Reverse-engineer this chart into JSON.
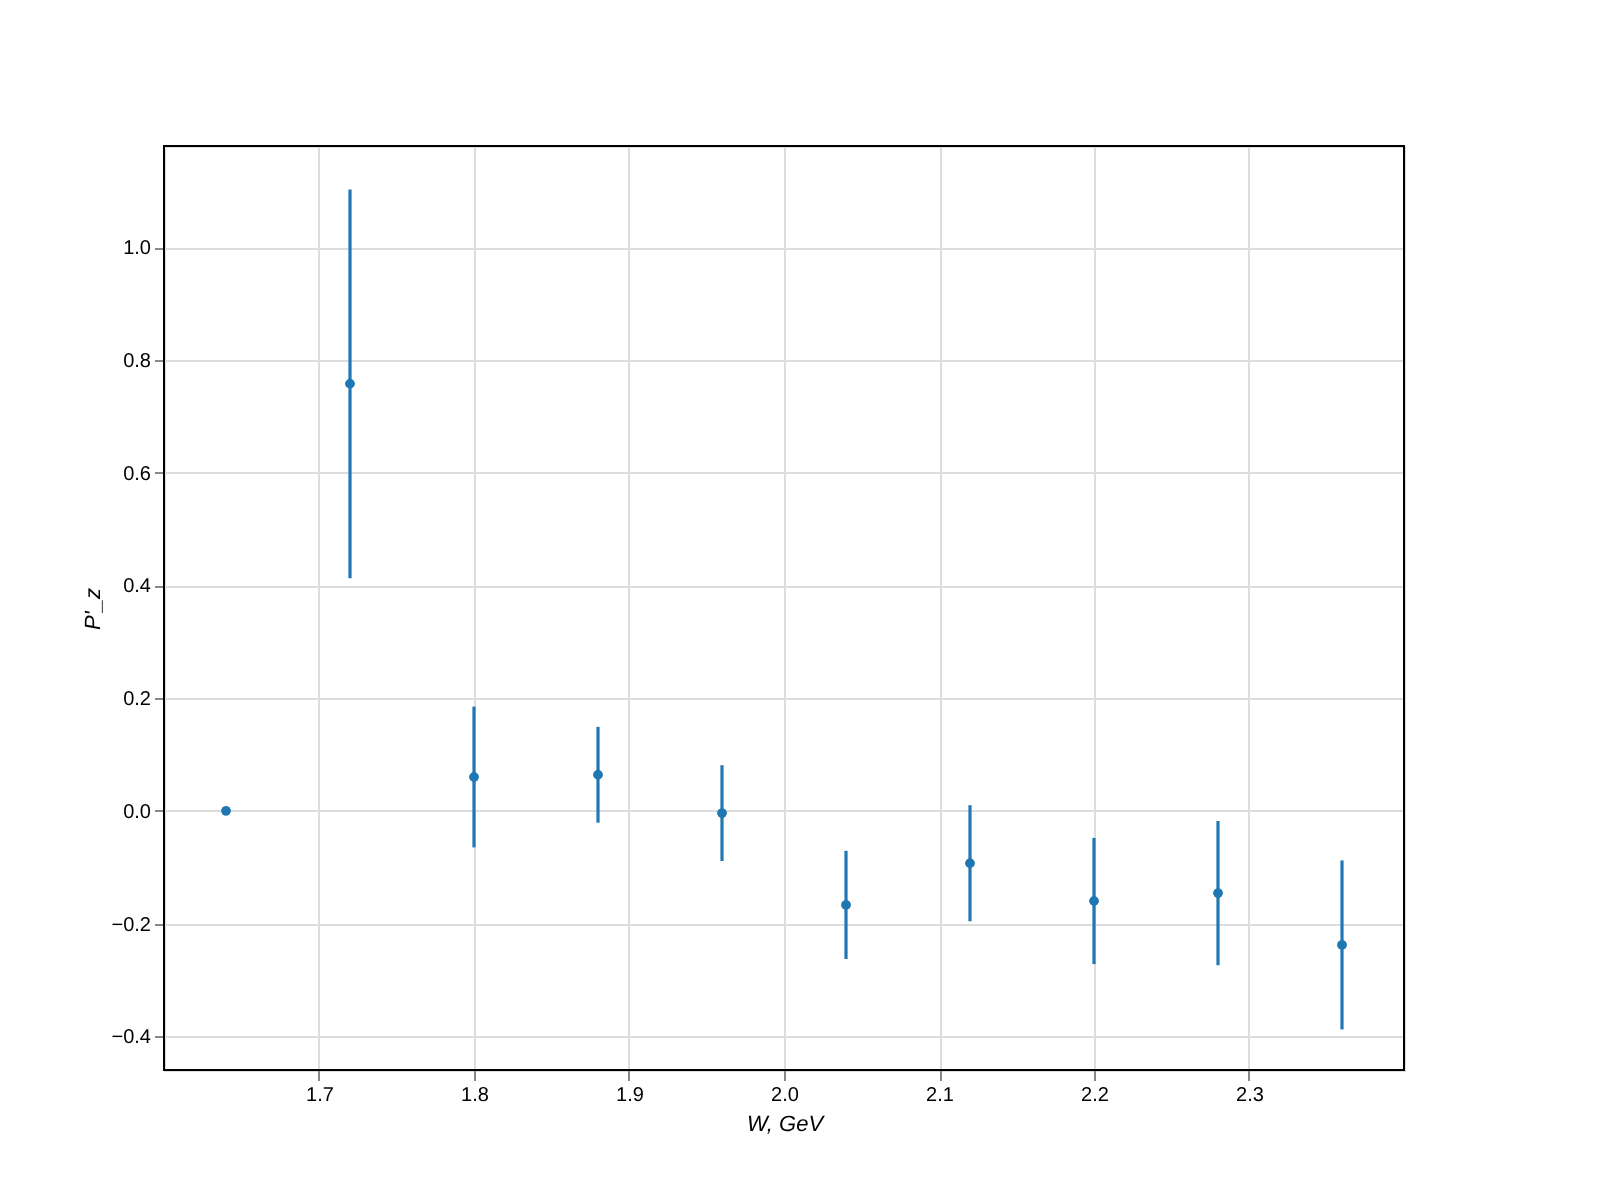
{
  "chart_data": {
    "type": "scatter",
    "xlabel": "W, GeV",
    "ylabel": "P'_z",
    "x": [
      1.64,
      1.72,
      1.8,
      1.88,
      1.96,
      2.04,
      2.12,
      2.2,
      2.28,
      2.36
    ],
    "series": [
      {
        "color": "#1f77b4",
        "values": [
          0.0,
          0.758,
          0.06,
          0.064,
          -0.004,
          -0.167,
          -0.093,
          -0.16,
          -0.146,
          -0.238
        ],
        "errors": [
          null,
          0.345,
          0.125,
          0.085,
          0.085,
          0.096,
          0.103,
          0.112,
          0.128,
          0.15
        ]
      }
    ],
    "marker": "circle",
    "xlim": [
      1.6,
      2.4
    ],
    "ylim": [
      -0.46,
      1.18
    ],
    "xticks": [
      1.7,
      1.8,
      1.9,
      {
        "value": 2.0,
        "label": "2.0"
      },
      2.1,
      2.2,
      2.3
    ],
    "yticks": [
      {
        "value": -0.4,
        "label": "−0.4"
      },
      {
        "value": -0.2,
        "label": "−0.2"
      },
      {
        "value": 0.0,
        "label": "0.0"
      },
      {
        "value": 0.2,
        "label": "0.2"
      },
      {
        "value": 0.4,
        "label": "0.4"
      },
      {
        "value": 0.6,
        "label": "0.6"
      },
      {
        "value": 0.8,
        "label": "0.8"
      },
      {
        "value": 1.0,
        "label": "1.0"
      }
    ],
    "grid": true
  }
}
